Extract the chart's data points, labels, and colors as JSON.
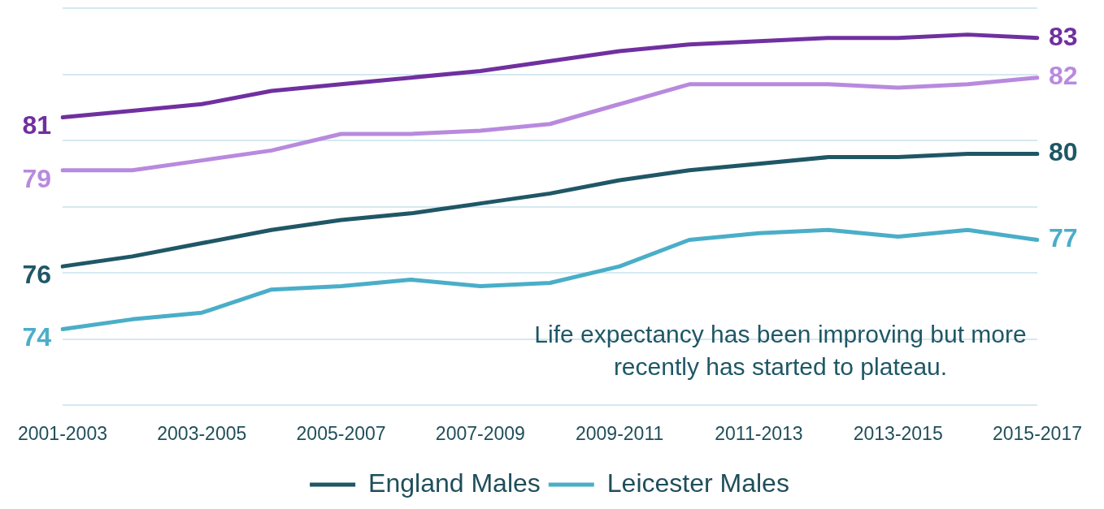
{
  "chart_data": {
    "type": "line",
    "categories": [
      "2001-2003",
      null,
      "2003-2005",
      null,
      "2005-2007",
      null,
      "2007-2009",
      null,
      "2009-2011",
      null,
      "2011-2013",
      null,
      "2013-2015",
      null,
      "2015-2017"
    ],
    "series": [
      {
        "color": "#7030a0",
        "values": [
          80.7,
          80.9,
          81.1,
          81.5,
          81.7,
          81.9,
          82.1,
          82.4,
          82.7,
          82.9,
          83.0,
          83.1,
          83.1,
          83.2,
          83.1
        ],
        "value_labels": [
          "81",
          null,
          null,
          null,
          null,
          null,
          null,
          null,
          null,
          null,
          null,
          null,
          null,
          null,
          "83"
        ]
      },
      {
        "color": "#b88ade",
        "values": [
          79.1,
          79.1,
          79.4,
          79.7,
          80.2,
          80.2,
          80.3,
          80.5,
          81.1,
          81.7,
          81.7,
          81.7,
          81.6,
          81.7,
          81.9
        ],
        "value_labels": [
          "79",
          null,
          null,
          null,
          null,
          null,
          null,
          null,
          null,
          null,
          null,
          null,
          null,
          null,
          "82"
        ]
      },
      {
        "name": "England Males",
        "color": "#1f5766",
        "values": [
          76.2,
          76.5,
          76.9,
          77.3,
          77.6,
          77.8,
          78.1,
          78.4,
          78.8,
          79.1,
          79.3,
          79.5,
          79.5,
          79.6,
          79.6
        ],
        "value_labels": [
          "76",
          null,
          null,
          null,
          null,
          null,
          null,
          null,
          null,
          null,
          null,
          null,
          null,
          null,
          "80"
        ]
      },
      {
        "name": "Leicester Males",
        "color": "#4aaec8",
        "values": [
          74.3,
          74.6,
          74.8,
          75.5,
          75.6,
          75.8,
          75.6,
          75.7,
          76.2,
          77.0,
          77.2,
          77.3,
          77.1,
          77.3,
          77.0
        ],
        "value_labels": [
          "74",
          null,
          null,
          null,
          null,
          null,
          null,
          null,
          null,
          null,
          null,
          null,
          null,
          null,
          "77"
        ]
      }
    ],
    "ylim": [
      72,
      84
    ],
    "yticks": [
      {
        "value": 72,
        "label": null
      },
      {
        "value": 74,
        "label": null
      },
      {
        "value": 76,
        "label": null
      },
      {
        "value": 78,
        "label": null
      },
      {
        "value": 80,
        "label": null
      },
      {
        "value": 82,
        "label": null
      },
      {
        "value": 84,
        "label": null
      }
    ],
    "grid": "y",
    "legend": "bottom",
    "tick_labels": "x",
    "marker": "none",
    "annotations": [
      "Life expectancy has been improving but more recently has started to plateau."
    ]
  }
}
